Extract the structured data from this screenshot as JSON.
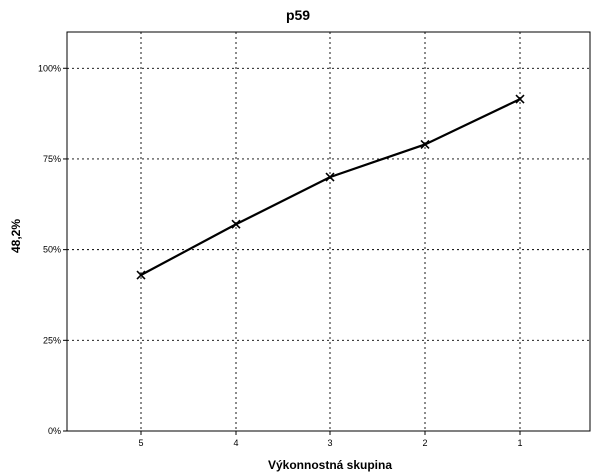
{
  "chart_data": {
    "type": "line",
    "title": "p59",
    "xlabel": "Výkonnostná skupina",
    "ylabel": "48,2%",
    "categories": [
      "5",
      "4",
      "3",
      "2",
      "1"
    ],
    "y_ticks": [
      "0%",
      "25%",
      "50%",
      "75%",
      "100%"
    ],
    "ylim": [
      0,
      110
    ],
    "series": [
      {
        "values": [
          43,
          57,
          70,
          79,
          91.5
        ],
        "color": "#000000",
        "marker": "x"
      }
    ],
    "grid": true,
    "legend": "none"
  }
}
